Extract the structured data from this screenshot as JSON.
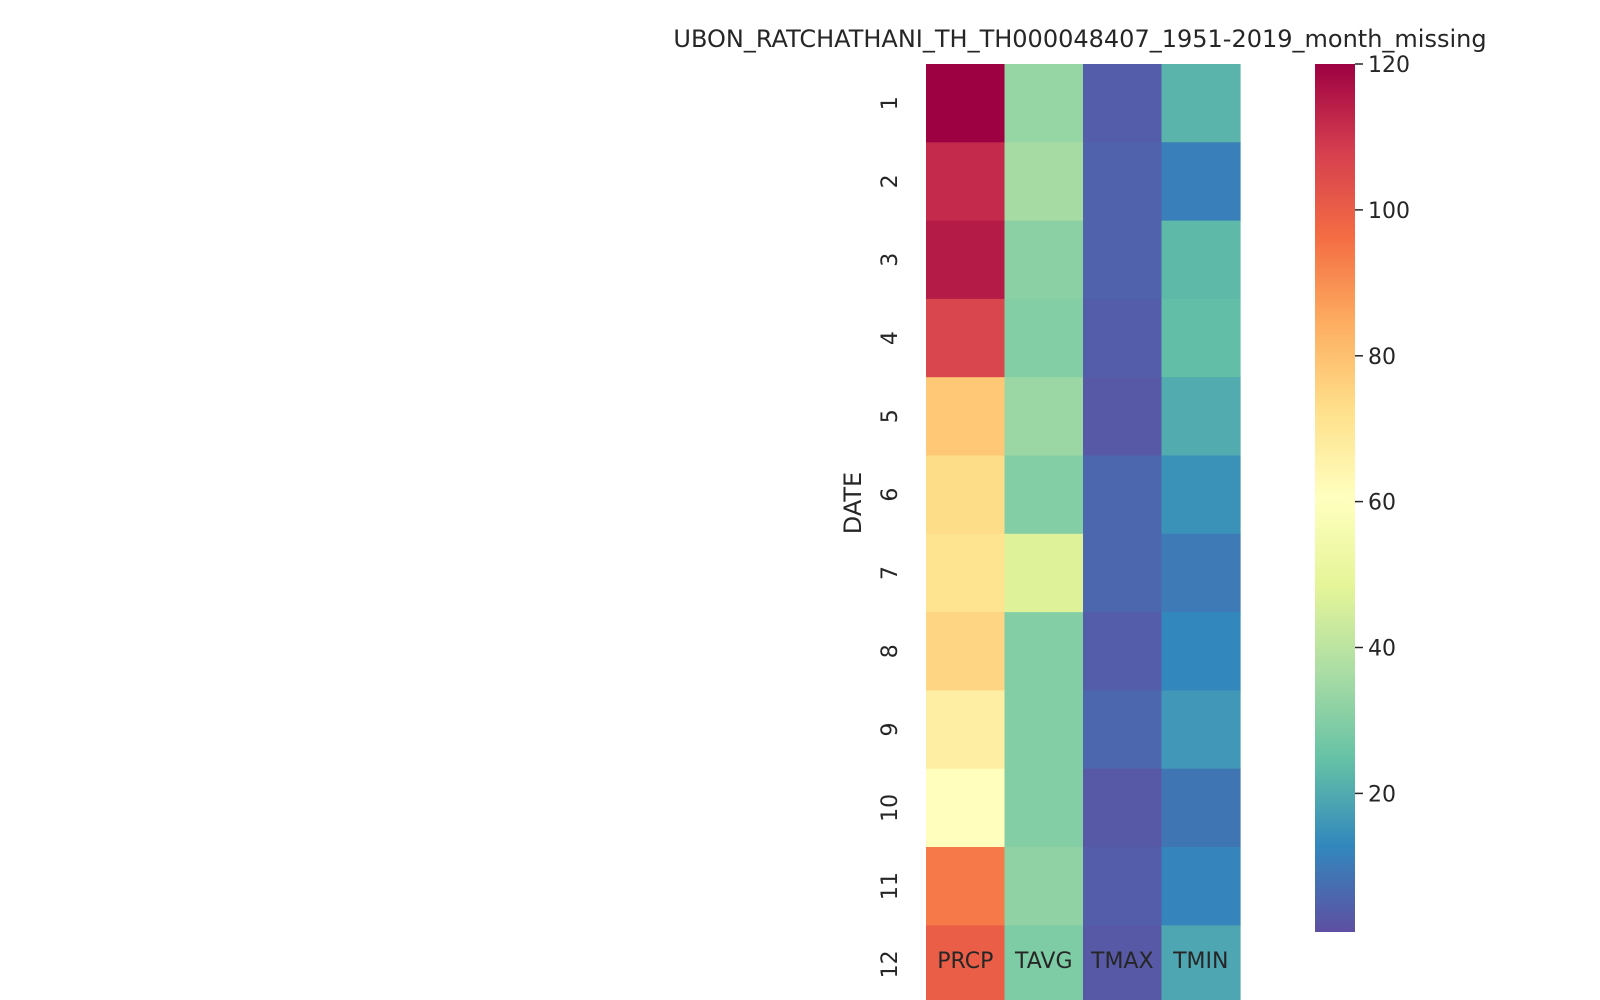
{
  "chart_data": {
    "type": "heatmap",
    "title": "UBON_RATCHATHANI_TH_TH000048407_1951-2019_month_missing",
    "ylabel": "DATE",
    "xlabel": "",
    "x_categories": [
      "PRCP",
      "TAVG",
      "TMAX",
      "TMIN"
    ],
    "y_categories": [
      "1",
      "2",
      "3",
      "4",
      "5",
      "6",
      "7",
      "8",
      "9",
      "10",
      "11",
      "12"
    ],
    "values": [
      [
        120,
        33,
        4,
        22
      ],
      [
        112,
        36,
        5,
        11
      ],
      [
        115,
        31,
        5,
        23
      ],
      [
        106,
        30,
        4,
        24
      ],
      [
        78,
        34,
        3,
        20
      ],
      [
        73,
        30,
        6,
        15
      ],
      [
        71,
        47,
        6,
        10
      ],
      [
        75,
        30,
        4,
        13
      ],
      [
        67,
        30,
        6,
        16
      ],
      [
        61,
        30,
        3,
        9
      ],
      [
        94,
        32,
        4,
        12
      ],
      [
        100,
        29,
        3,
        19
      ]
    ],
    "colorbar": {
      "colormap": "Spectral",
      "vmin": 1,
      "vmax": 120,
      "ticks": [
        "20",
        "40",
        "60",
        "80",
        "100",
        "120"
      ]
    },
    "grid": false,
    "legend": "colorbar-right"
  }
}
